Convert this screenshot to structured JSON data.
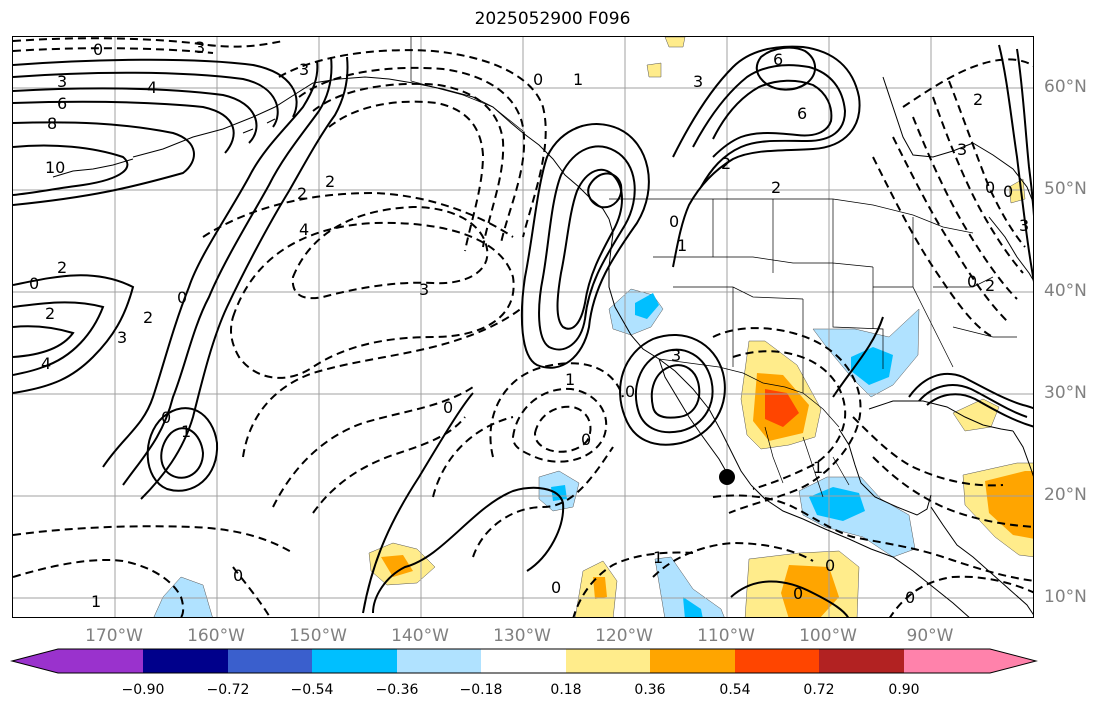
{
  "title": "2025052900 F096",
  "map": {
    "lon_labels": [
      "170°W",
      "160°W",
      "150°W",
      "140°W",
      "130°W",
      "120°W",
      "110°W",
      "100°W",
      "90°W"
    ],
    "lat_labels": [
      "60°N",
      "50°N",
      "40°N",
      "30°N",
      "20°N",
      "10°N"
    ],
    "contour_labels": [
      "0",
      "3",
      "3",
      "4",
      "6",
      "8",
      "10",
      "3",
      "2",
      "2",
      "4",
      "2",
      "0",
      "3",
      "2",
      "2",
      "4",
      "3",
      "0",
      "1",
      "0",
      "1",
      "0",
      "0",
      "1",
      "0",
      "6",
      "3",
      "2",
      "3",
      "0",
      "1",
      "6",
      "0",
      "2",
      "0",
      "1",
      "1",
      "0",
      "0",
      "0",
      "1",
      "0",
      "0",
      "0",
      "2",
      "3",
      "0",
      "2",
      "3"
    ],
    "marker": "filled black dot near 110°W, 23°N"
  },
  "colorbar": {
    "colors": [
      "#9a32cd",
      "#00008b",
      "#3a5fcd",
      "#00bfff",
      "#b0e2ff",
      "#ffffff",
      "#ffec8b",
      "#ffa500",
      "#ff4500",
      "#b22222",
      "#ff82ab"
    ],
    "tick_labels": [
      "−0.90",
      "−0.72",
      "−0.54",
      "−0.36",
      "−0.18",
      "0.18",
      "0.36",
      "0.54",
      "0.72",
      "0.90"
    ]
  }
}
